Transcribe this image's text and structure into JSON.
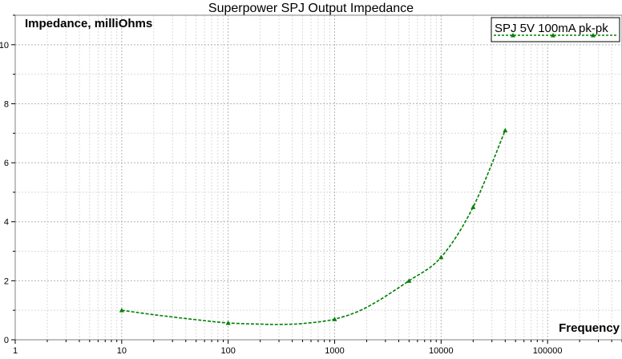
{
  "chart_data": {
    "type": "line",
    "title": "Superpower SPJ Output Impedance",
    "xlabel": "Frequency",
    "ylabel": "Impedance, milliOhms",
    "x_scale": "log",
    "xlim": [
      1,
      500000
    ],
    "ylim": [
      0,
      11
    ],
    "grid": true,
    "legend_position": "top-right",
    "x_ticks": [
      {
        "value": 1,
        "label": "1"
      },
      {
        "value": 10,
        "label": "10"
      },
      {
        "value": 100,
        "label": "100"
      },
      {
        "value": 1000,
        "label": "1000"
      },
      {
        "value": 10000,
        "label": "10000"
      },
      {
        "value": 100000,
        "label": "100000"
      }
    ],
    "y_ticks": [
      {
        "value": 0,
        "label": "0"
      },
      {
        "value": 2,
        "label": "2"
      },
      {
        "value": 4,
        "label": "4"
      },
      {
        "value": 6,
        "label": "6"
      },
      {
        "value": 8,
        "label": "8"
      },
      {
        "value": 10,
        "label": "10"
      }
    ],
    "series": [
      {
        "name": "SPJ 5V 100mA pk-pk",
        "color": "#008000",
        "line_style": "dashed",
        "marker": "triangle",
        "x": [
          10,
          20,
          50,
          100,
          200,
          300,
          500,
          1000,
          2000,
          5000,
          10000,
          20000,
          40000
        ],
        "y": [
          1.0,
          0.85,
          0.68,
          0.57,
          0.53,
          0.52,
          0.55,
          0.7,
          1.1,
          2.0,
          2.8,
          4.5,
          7.1
        ],
        "marker_x": [
          10,
          100,
          1000,
          5000,
          10000,
          20000,
          40000
        ],
        "marker_y": [
          1.0,
          0.57,
          0.7,
          2.0,
          2.8,
          4.5,
          7.1
        ]
      }
    ]
  }
}
